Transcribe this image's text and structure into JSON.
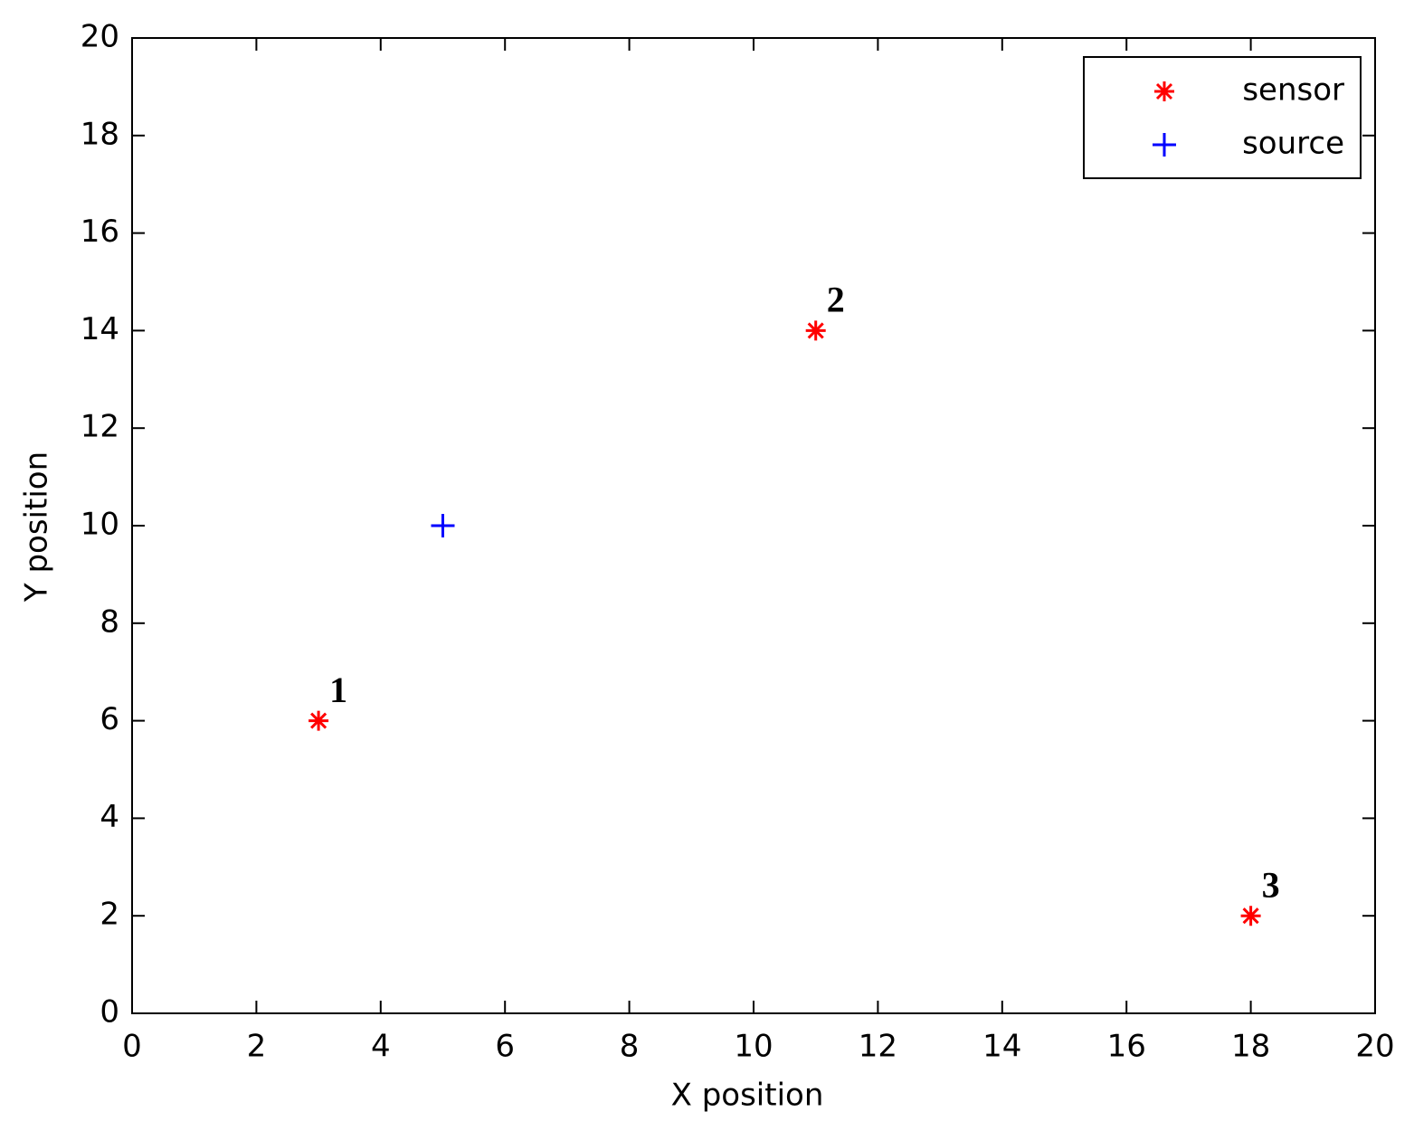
{
  "chart_data": {
    "type": "scatter",
    "x_label": "X position",
    "y_label": "Y position",
    "series": [
      {
        "name": "sensor",
        "color": "#ff0000",
        "marker": "asterisk",
        "x": [
          3,
          11,
          18
        ],
        "values": [
          6,
          14,
          2
        ],
        "labels": [
          "1",
          "2",
          "3"
        ]
      },
      {
        "name": "source",
        "color": "#0000ff",
        "marker": "plus",
        "x": [
          5
        ],
        "values": [
          10
        ]
      }
    ],
    "xlim": [
      0,
      20
    ],
    "xticks": [
      0,
      2,
      4,
      6,
      8,
      10,
      12,
      14,
      16,
      18,
      20
    ],
    "ylim": [
      0,
      20
    ],
    "yticks": [
      0,
      2,
      4,
      6,
      8,
      10,
      12,
      14,
      16,
      18,
      20
    ],
    "grid": false,
    "legend": "upper right"
  }
}
